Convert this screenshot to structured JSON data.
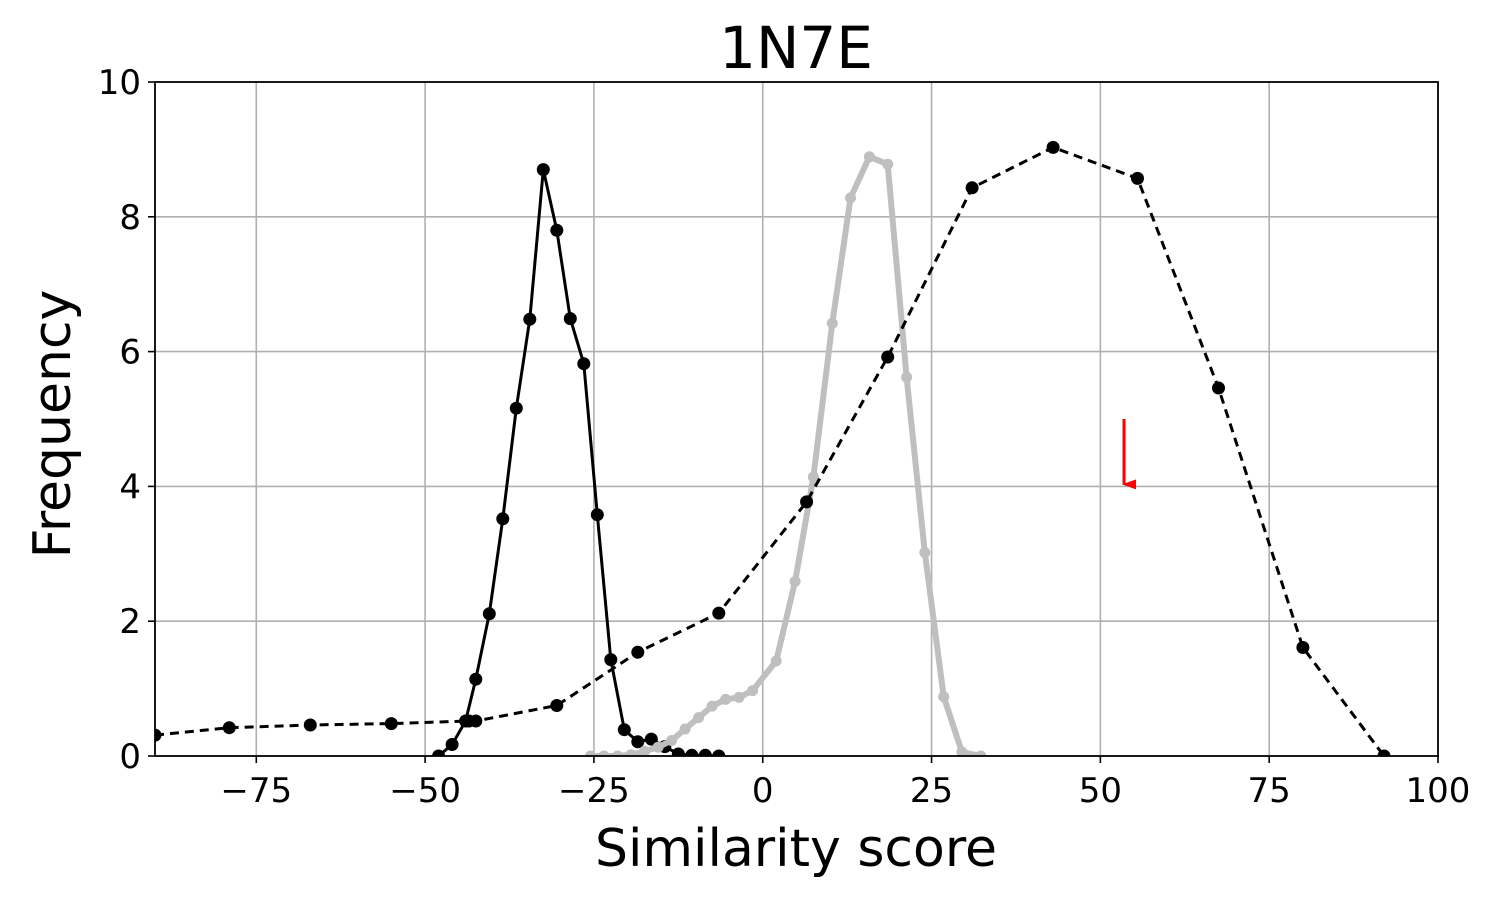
{
  "chart_data": {
    "type": "line",
    "title": "1N7E",
    "xlabel": "Similarity score",
    "ylabel": "Frequency",
    "xlim": [
      -90,
      100
    ],
    "ylim": [
      0,
      10
    ],
    "xticks": [
      -75,
      -50,
      -25,
      0,
      25,
      50,
      75,
      100
    ],
    "xtick_labels": [
      "−75",
      "−50",
      "−25",
      "0",
      "25",
      "50",
      "75",
      "100"
    ],
    "yticks": [
      0,
      2,
      4,
      6,
      8,
      10
    ],
    "ytick_labels": [
      "0",
      "2",
      "4",
      "6",
      "8",
      "10"
    ],
    "grid": true,
    "legend": "none",
    "series": [
      {
        "style": "solid",
        "color": "#000000",
        "line_width": 3,
        "marker": "circle",
        "points": [
          [
            -48,
            0.0
          ],
          [
            -46,
            0.17
          ],
          [
            -44,
            0.52
          ],
          [
            -42.5,
            1.14
          ],
          [
            -40.5,
            2.11
          ],
          [
            -38.5,
            3.52
          ],
          [
            -36.5,
            5.16
          ],
          [
            -34.5,
            6.48
          ],
          [
            -32.5,
            8.7
          ],
          [
            -30.5,
            7.8
          ],
          [
            -28.5,
            6.49
          ],
          [
            -26.5,
            5.82
          ],
          [
            -24.5,
            3.58
          ],
          [
            -22.5,
            1.43
          ],
          [
            -20.5,
            0.39
          ],
          [
            -18.5,
            0.21
          ],
          [
            -16.5,
            0.25
          ],
          [
            -14.5,
            0.14
          ],
          [
            -12.5,
            0.03
          ],
          [
            -10.5,
            0.01
          ],
          [
            -8.5,
            0.01
          ],
          [
            -6.5,
            0.0
          ]
        ]
      },
      {
        "style": "solid",
        "color": "#bfbfbf",
        "line_width": 6,
        "marker": "circle",
        "points": [
          [
            -25.5,
            0.0
          ],
          [
            -23.5,
            0.0
          ],
          [
            -21.5,
            0.0
          ],
          [
            -19.5,
            0.02
          ],
          [
            -17.5,
            0.07
          ],
          [
            -15.5,
            0.13
          ],
          [
            -13.5,
            0.23
          ],
          [
            -11.5,
            0.4
          ],
          [
            -9.5,
            0.57
          ],
          [
            -7.5,
            0.74
          ],
          [
            -5.5,
            0.84
          ],
          [
            -3.5,
            0.87
          ],
          [
            -1.5,
            0.97
          ],
          [
            2,
            1.41
          ],
          [
            4.8,
            2.59
          ],
          [
            7.5,
            4.14
          ],
          [
            10.3,
            6.42
          ],
          [
            13.0,
            8.28
          ],
          [
            15.8,
            8.89
          ],
          [
            18.5,
            8.78
          ],
          [
            21.3,
            5.62
          ],
          [
            24.0,
            3.02
          ],
          [
            26.8,
            0.88
          ],
          [
            29.5,
            0.06
          ],
          [
            32.3,
            0.0
          ]
        ]
      },
      {
        "style": "dashed",
        "color": "#000000",
        "line_width": 3,
        "marker": "circle",
        "points": [
          [
            -90,
            0.31
          ],
          [
            -79,
            0.42
          ],
          [
            -67,
            0.46
          ],
          [
            -55,
            0.48
          ],
          [
            -43.5,
            0.52
          ],
          [
            -42.5,
            0.52
          ],
          [
            -30.5,
            0.75
          ],
          [
            -18.5,
            1.54
          ],
          [
            -6.5,
            2.12
          ],
          [
            6.5,
            3.77
          ],
          [
            18.5,
            5.92
          ],
          [
            31,
            8.43
          ],
          [
            43,
            9.03
          ],
          [
            55.5,
            8.57
          ],
          [
            67.5,
            5.46
          ],
          [
            80,
            1.61
          ],
          [
            92,
            0.0
          ]
        ]
      }
    ],
    "annotations": [
      {
        "type": "arrow",
        "color": "#ff0000",
        "x": 53.5,
        "y_from": 5.0,
        "y_to": 4.0
      }
    ]
  }
}
